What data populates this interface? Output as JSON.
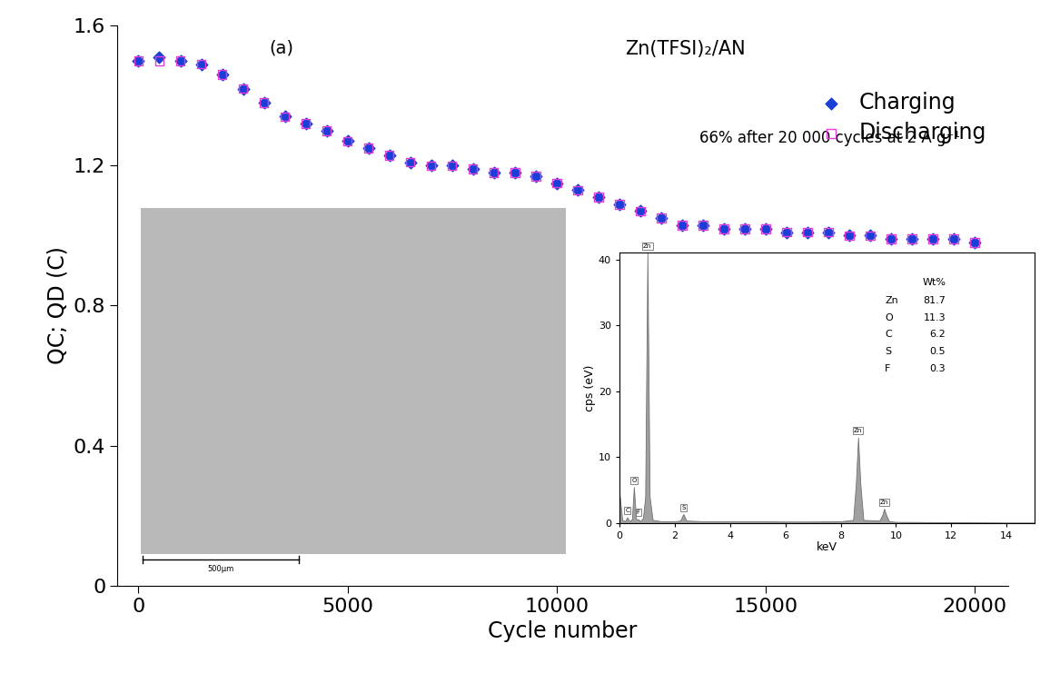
{
  "chart_data": [
    {
      "type": "scatter",
      "x_label": "Cycle number",
      "y_label": "QC; QD (C)",
      "annotations": [
        "(a)",
        "Zn(TFSI)₂/AN",
        "66% after 20 000 cycles at 2 A g⁻¹",
        "500µm"
      ],
      "x": [
        0,
        500,
        1000,
        1500,
        2000,
        2500,
        3000,
        3500,
        4000,
        4500,
        5000,
        5500,
        6000,
        6500,
        7000,
        7500,
        8000,
        8500,
        9000,
        9500,
        10000,
        10500,
        11000,
        11500,
        12000,
        12500,
        13000,
        13500,
        14000,
        14500,
        15000,
        15500,
        16000,
        16500,
        17000,
        17500,
        18000,
        18500,
        19000,
        19500,
        20000
      ],
      "series": [
        {
          "name": "Charging",
          "color": "#1a3fd6",
          "marker": "diamond",
          "values": [
            1.5,
            1.51,
            1.5,
            1.49,
            1.46,
            1.42,
            1.38,
            1.34,
            1.32,
            1.3,
            1.27,
            1.25,
            1.23,
            1.21,
            1.2,
            1.2,
            1.19,
            1.18,
            1.18,
            1.17,
            1.15,
            1.13,
            1.11,
            1.09,
            1.07,
            1.05,
            1.03,
            1.03,
            1.02,
            1.02,
            1.02,
            1.01,
            1.01,
            1.01,
            1.0,
            1.0,
            0.99,
            0.99,
            0.99,
            0.99,
            0.98
          ]
        },
        {
          "name": "Discharging",
          "color": "#e040d8",
          "marker": "square",
          "values": [
            1.5,
            1.5,
            1.5,
            1.49,
            1.46,
            1.42,
            1.38,
            1.34,
            1.32,
            1.3,
            1.27,
            1.25,
            1.23,
            1.21,
            1.2,
            1.2,
            1.19,
            1.18,
            1.18,
            1.17,
            1.15,
            1.13,
            1.11,
            1.09,
            1.07,
            1.05,
            1.03,
            1.03,
            1.02,
            1.02,
            1.02,
            1.01,
            1.01,
            1.01,
            1.0,
            1.0,
            0.99,
            0.99,
            0.99,
            0.99,
            0.98
          ]
        }
      ],
      "xlim": [
        -500,
        20800
      ],
      "xticks": [
        0,
        5000,
        10000,
        15000,
        20000
      ],
      "ylim": [
        0,
        1.6
      ],
      "yticks": [
        0,
        0.4,
        0.8,
        1.2,
        1.6
      ],
      "legend": "upper right",
      "grid": false
    },
    {
      "type": "area",
      "x_label": "keV",
      "y_label": "cps (eV)",
      "color": "#a0a0a0",
      "x": [
        0,
        0.1,
        0.2,
        0.28,
        0.36,
        0.45,
        0.52,
        0.6,
        0.68,
        0.76,
        0.85,
        0.93,
        1.01,
        1.09,
        1.2,
        1.5,
        2.0,
        2.2,
        2.31,
        2.42,
        3,
        4,
        5,
        6,
        7,
        8,
        8.45,
        8.55,
        8.63,
        8.71,
        8.82,
        9.4,
        9.5,
        9.57,
        9.65,
        9.75,
        10,
        12,
        14,
        15
      ],
      "values": [
        4.5,
        0.5,
        0.3,
        0.9,
        0.3,
        0.6,
        5.5,
        0.6,
        0.6,
        0.3,
        0.8,
        4,
        41,
        4,
        0.5,
        0.3,
        0.3,
        0.4,
        1.4,
        0.4,
        0.3,
        0.3,
        0.3,
        0.25,
        0.25,
        0.3,
        0.5,
        6,
        13,
        6,
        0.5,
        0.4,
        1.2,
        2.2,
        1.2,
        0.3,
        0.2,
        0.15,
        0.1,
        0.1
      ],
      "peaks": {
        "x": [
          0.28,
          0.52,
          0.68,
          1.01,
          2.31,
          8.63,
          9.57
        ],
        "y": [
          0.9,
          5.5,
          0.6,
          41,
          1.4,
          13,
          2.2
        ],
        "labels": [
          "C",
          "O",
          "F",
          "Zn",
          "S",
          "Zn",
          "Zn"
        ]
      },
      "table": {
        "title": "Wt%",
        "rows": [
          [
            "Zn",
            81.7
          ],
          [
            "O",
            11.3
          ],
          [
            "C",
            6.2
          ],
          [
            "S",
            0.5
          ],
          [
            "F",
            0.3
          ]
        ]
      },
      "xlim": [
        0,
        15
      ],
      "xticks": [
        0,
        2,
        4,
        6,
        8,
        10,
        12,
        14
      ],
      "ylim": [
        0,
        41
      ],
      "yticks": [
        0,
        10,
        20,
        30,
        40
      ],
      "grid": false
    }
  ]
}
